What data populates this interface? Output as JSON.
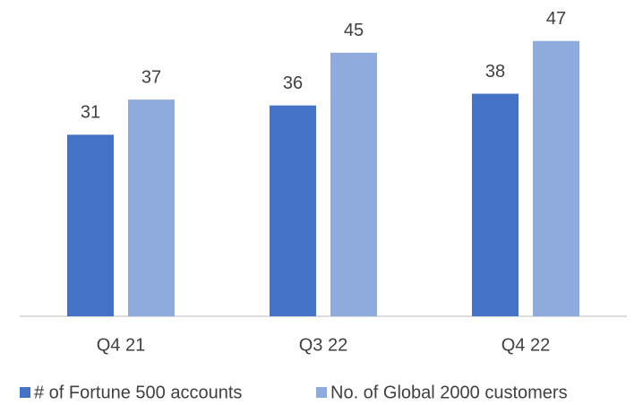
{
  "chart_data": {
    "type": "bar",
    "categories": [
      "Q4 21",
      "Q3 22",
      "Q4 22"
    ],
    "series": [
      {
        "name": "# of Fortune 500 accounts",
        "color": "#4472c4",
        "values": [
          31,
          36,
          38
        ]
      },
      {
        "name": "No. of Global 2000 customers",
        "color": "#8faadc",
        "values": [
          37,
          45,
          47
        ]
      }
    ],
    "ylim": [
      0,
      54
    ]
  }
}
